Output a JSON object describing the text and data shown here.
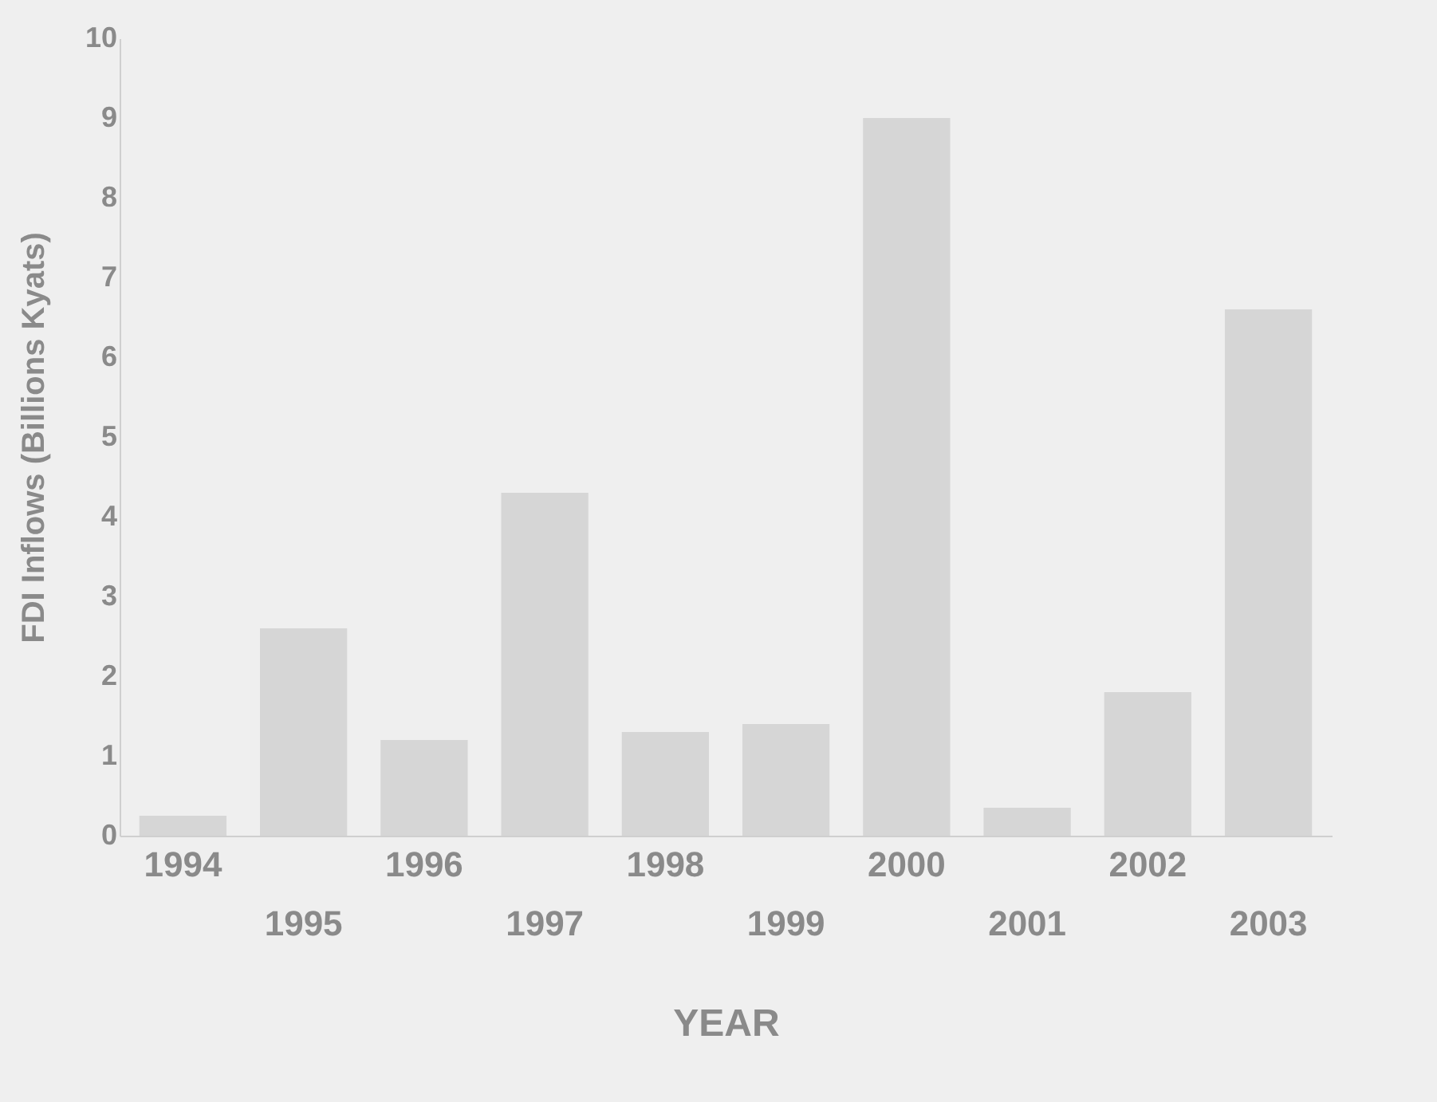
{
  "chart_data": {
    "type": "bar",
    "xlabel": "YEAR",
    "ylabel": "FDI Inflows (Billions Kyats)",
    "categories": [
      "1994",
      "1995",
      "1996",
      "1997",
      "1998",
      "1999",
      "2000",
      "2001",
      "2002",
      "2003"
    ],
    "values": [
      0.25,
      2.6,
      1.2,
      4.3,
      1.3,
      1.4,
      9.0,
      0.35,
      1.8,
      6.6
    ],
    "color": "#d6d6d6",
    "ylim": [
      0,
      10
    ],
    "yticks": [
      0,
      1,
      2,
      3,
      4,
      5,
      6,
      7,
      8,
      9,
      10
    ],
    "grid": false
  }
}
